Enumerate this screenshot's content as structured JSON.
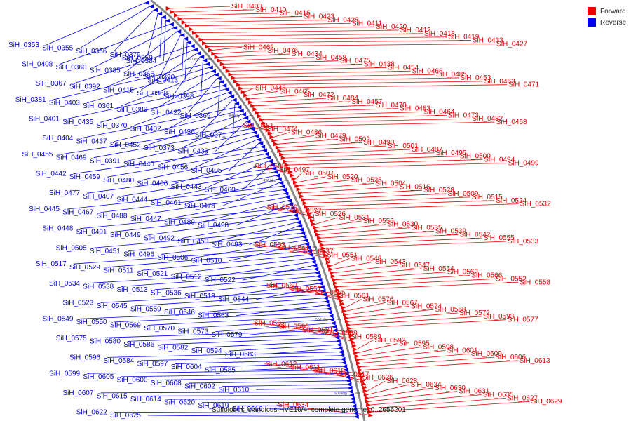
{
  "legend": [
    {
      "label": "Forward",
      "color": "#ee0000"
    },
    {
      "label": "Reverse",
      "color": "#0000ee"
    }
  ],
  "caption": "Sulfolobus islandicus HVE10/4, complete genome, 0..2655201",
  "ticks": [
    "350 kbp",
    "400 kbp",
    "450 kbp",
    "500 kbp",
    "550 kbp",
    "600 kbp"
  ],
  "forward_labels": [
    "SiH_0400",
    "SiH_0410",
    "SiH_0416",
    "SiH_0423",
    "SiH_0428",
    "SiH_0411",
    "SiH_0420",
    "SiH_0412",
    "SiH_0418",
    "SiH_0419",
    "SiH_0433",
    "SiH_0427",
    "SiH_0462",
    "SiH_0476",
    "SiH_0434",
    "SiH_0458",
    "SiH_0475",
    "SiH_0438",
    "SiH_0454",
    "SiH_0466",
    "SiH_0485",
    "SiH_0453",
    "SiH_0463",
    "SiH_0471",
    "SiH_0446",
    "SiH_0465",
    "SiH_0472",
    "SiH_0484",
    "SiH_0457",
    "SiH_0470",
    "SiH_0483",
    "SiH_0464",
    "SiH_0473",
    "SiH_0482",
    "SiH_0468",
    "SiH_0481",
    "SiH_0474",
    "SiH_0486",
    "SiH_0479",
    "SiH_0502",
    "SiH_0490",
    "SiH_0501",
    "SiH_0487",
    "SiH_0495",
    "SiH_0500",
    "SiH_0494",
    "SiH_0499",
    "SiH_0508",
    "SiH_0497",
    "SiH_0507",
    "SiH_0520",
    "SiH_0525",
    "SiH_0504",
    "SiH_0516",
    "SiH_0528",
    "SiH_0509",
    "SiH_0515",
    "SiH_0524",
    "SiH_0532",
    "SiH_0519",
    "SiH_0527",
    "SiH_0526",
    "SiH_0531",
    "SiH_0556",
    "SiH_0530",
    "SiH_0535",
    "SiH_0539",
    "SiH_0542",
    "SiH_0555",
    "SiH_0533",
    "SiH_0553",
    "SiH_0541",
    "SiH_0537",
    "SiH_0551",
    "SiH_0548",
    "SiH_0543",
    "SiH_0547",
    "SiH_0554",
    "SiH_0562",
    "SiH_0566",
    "SiH_0552",
    "SiH_0558",
    "SiH_0560",
    "SiH_0557",
    "SiH_0565",
    "SiH_0561",
    "SiH_0576",
    "SiH_0567",
    "SiH_0574",
    "SiH_0568",
    "SiH_0572",
    "SiH_0593",
    "SiH_0577",
    "SiH_0591",
    "SiH_0590",
    "SiH_0581",
    "SiH_0588",
    "SiH_0589",
    "SiH_0592",
    "SiH_0595",
    "SiH_0598",
    "SiH_0601",
    "SiH_0609",
    "SiH_0606",
    "SiH_0613",
    "SiH_0612",
    "SiH_0611",
    "SiH_0618",
    "SiH_0617",
    "SiH_0626",
    "SiH_0628",
    "SiH_0624",
    "SiH_0630",
    "SiH_0631",
    "SiH_0635",
    "SiH_0627",
    "SiH_0629",
    "SiH_0634"
  ],
  "reverse_labels": [
    "SiH_0353",
    "SiH_0355",
    "SiH_0356",
    "SiH_0379",
    "SiH_0359",
    "SiH_0384",
    "SiH_0408",
    "SiH_0360",
    "SiH_0385",
    "SiH_0366",
    "SiH_0390",
    "SiH_0413",
    "SiH_0367",
    "SiH_0392",
    "SiH_0415",
    "SiH_0368",
    "SiH_0398",
    "SiH_0381",
    "SiH_0403",
    "SiH_0361",
    "SiH_0389",
    "SiH_0422",
    "SiH_0369",
    "SiH_0401",
    "SiH_0435",
    "SiH_0370",
    "SiH_0402",
    "SiH_0436",
    "SiH_0371",
    "SiH_0404",
    "SiH_0437",
    "SiH_0452",
    "SiH_0373",
    "SiH_0439",
    "SiH_0455",
    "SiH_0469",
    "SiH_0391",
    "SiH_0440",
    "SiH_0456",
    "SiH_0405",
    "SiH_0442",
    "SiH_0459",
    "SiH_0480",
    "SiH_0406",
    "SiH_0443",
    "SiH_0460",
    "SiH_0477",
    "SiH_0407",
    "SiH_0444",
    "SiH_0461",
    "SiH_0478",
    "SiH_0445",
    "SiH_0467",
    "SiH_0488",
    "SiH_0447",
    "SiH_0489",
    "SiH_0498",
    "SiH_0448",
    "SiH_0491",
    "SiH_0449",
    "SiH_0492",
    "SiH_0450",
    "SiH_0493",
    "SiH_0505",
    "SiH_0451",
    "SiH_0496",
    "SiH_0506",
    "SiH_0510",
    "SiH_0517",
    "SiH_0529",
    "SiH_0511",
    "SiH_0521",
    "SiH_0512",
    "SiH_0522",
    "SiH_0534",
    "SiH_0538",
    "SiH_0513",
    "SiH_0536",
    "SiH_0518",
    "SiH_0544",
    "SiH_0523",
    "SiH_0545",
    "SiH_0559",
    "SiH_0546",
    "SiH_0563",
    "SiH_0549",
    "SiH_0550",
    "SiH_0569",
    "SiH_0570",
    "SiH_0573",
    "SiH_0579",
    "SiH_0575",
    "SiH_0580",
    "SiH_0586",
    "SiH_0582",
    "SiH_0594",
    "SiH_0583",
    "SiH_0596",
    "SiH_0584",
    "SiH_0597",
    "SiH_0604",
    "SiH_0585",
    "SiH_0599",
    "SiH_0605",
    "SiH_0600",
    "SiH_0608",
    "SiH_0602",
    "SiH_0610",
    "SiH_0607",
    "SiH_0615",
    "SiH_0614",
    "SiH_0620",
    "SiH_0619",
    "SiH_0616",
    "SiH_0622",
    "SiH_0625"
  ]
}
